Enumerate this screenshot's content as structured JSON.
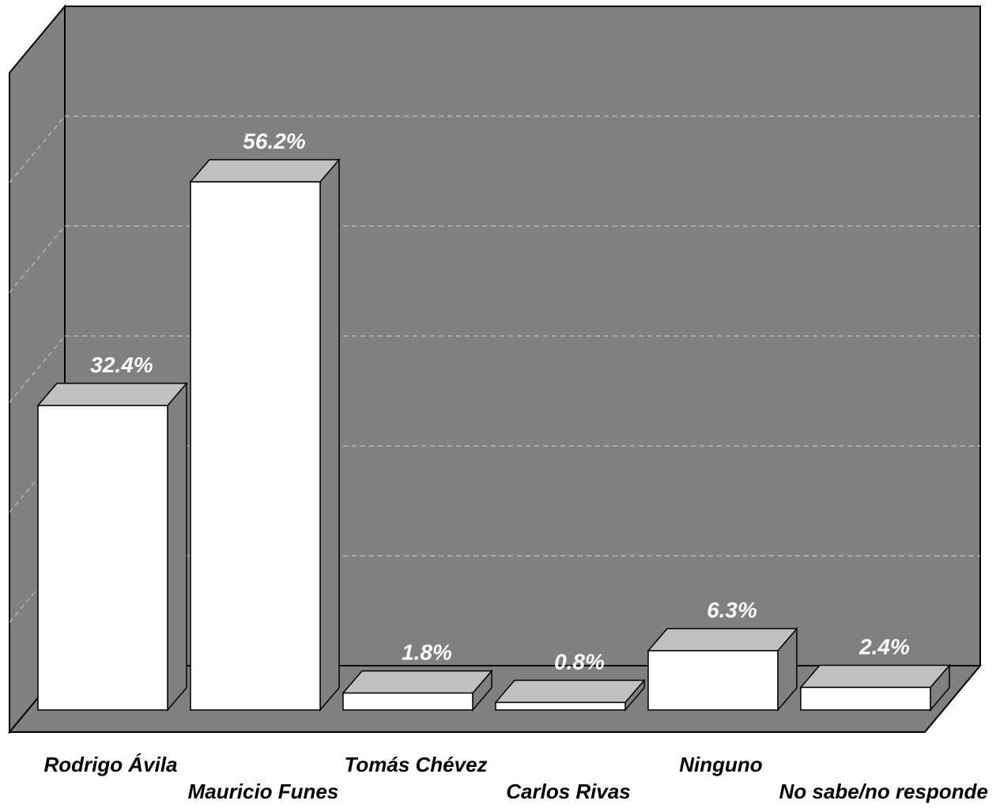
{
  "chart_data": {
    "type": "bar",
    "title": "",
    "xlabel": "",
    "ylabel": "",
    "ylim": [
      0,
      60
    ],
    "grid": true,
    "three_d": true,
    "categories": [
      "Rodrigo Ávila",
      "Mauricio Funes",
      "Tomás Chévez",
      "Carlos Rivas",
      "Ninguno",
      "No sabe/no responde"
    ],
    "values": [
      32.4,
      56.2,
      1.8,
      0.8,
      6.3,
      2.4
    ],
    "value_labels": [
      "32.4%",
      "56.2%",
      "1.8%",
      "0.8%",
      "6.3%",
      "2.4%"
    ]
  },
  "colors": {
    "wall": "#808080",
    "floor": "#808080",
    "bar_front": "#ffffff",
    "bar_top": "#c0c0c0",
    "bar_side": "#808080",
    "gridline": "#bfbfbf",
    "value_text": "#ffffff",
    "category_text": "#000000"
  }
}
